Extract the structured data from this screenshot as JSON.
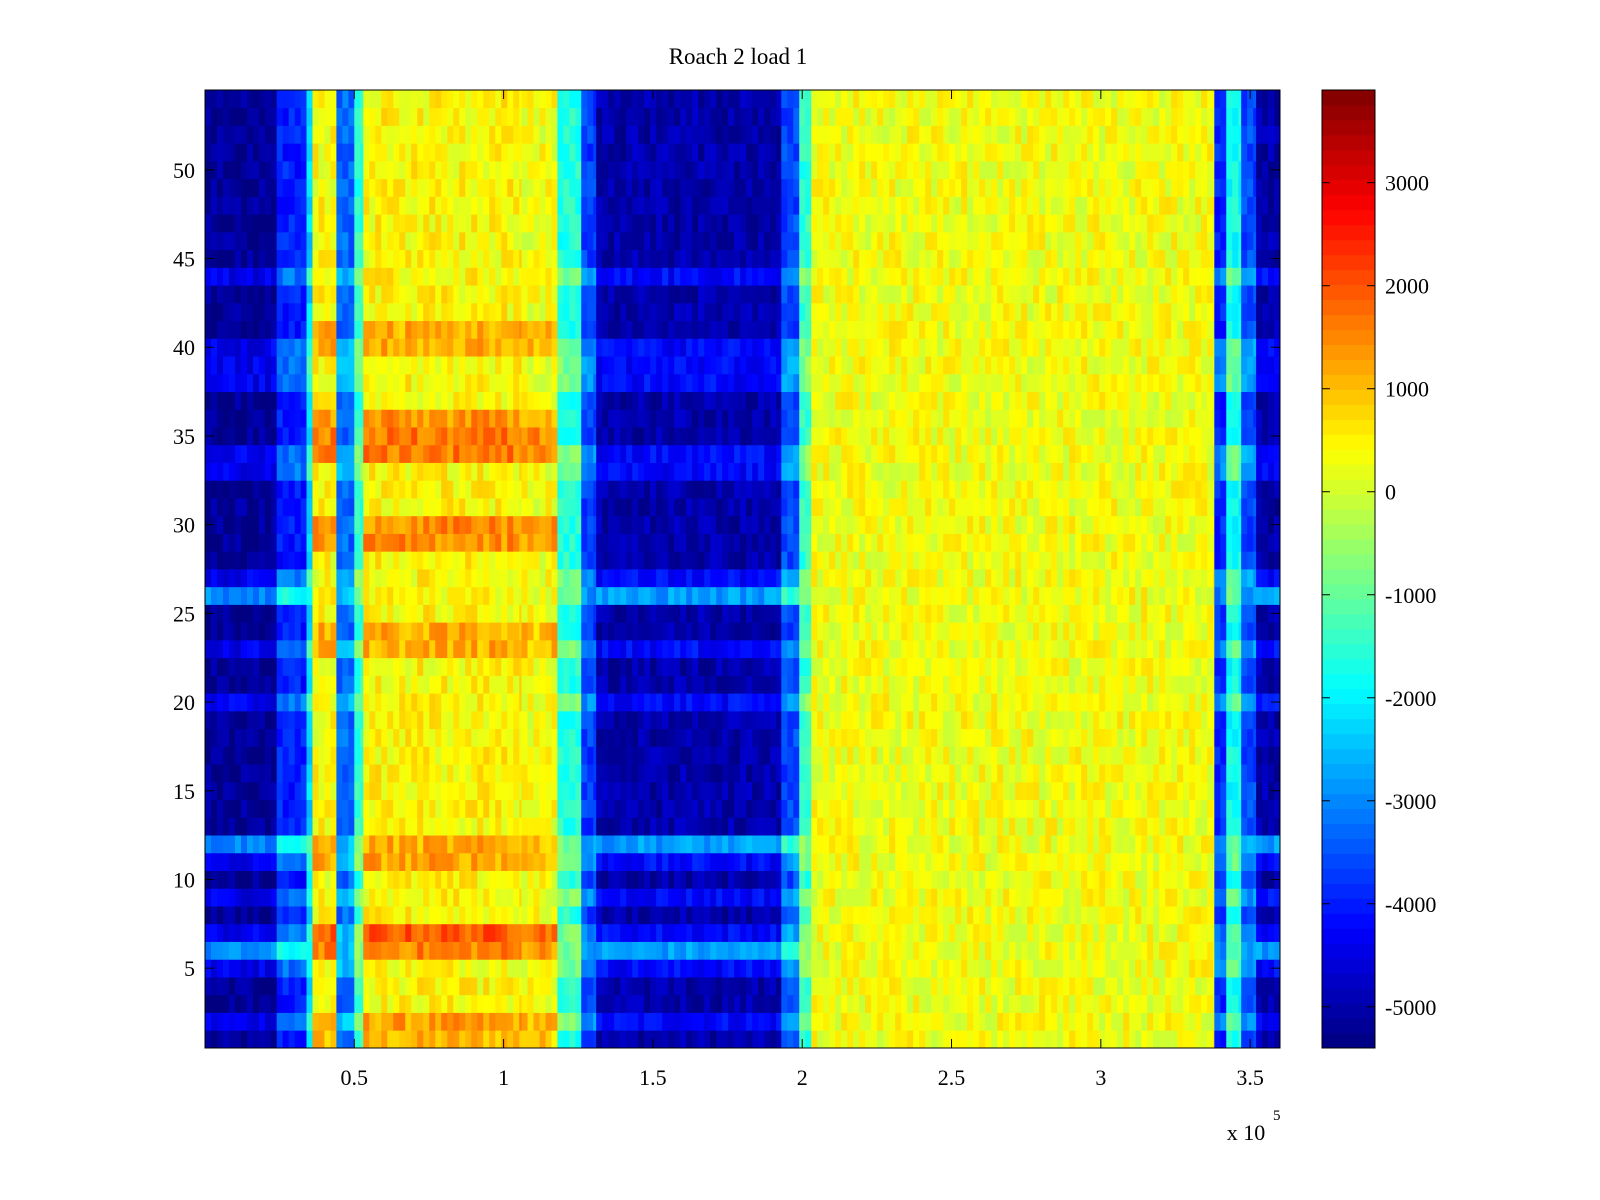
{
  "chart_data": {
    "type": "heatmap",
    "title": "Roach 2 load 1",
    "xlabel": "",
    "ylabel": "",
    "x_exponent_label": "x 10",
    "x_exponent_power": "5",
    "xlim": [
      0,
      360000
    ],
    "ylim": [
      0.5,
      54.5
    ],
    "x_ticks": [
      50000,
      100000,
      150000,
      200000,
      250000,
      300000,
      350000
    ],
    "x_tick_labels": [
      "0.5",
      "1",
      "1.5",
      "2",
      "2.5",
      "3",
      "3.5"
    ],
    "y_ticks": [
      5,
      10,
      15,
      20,
      25,
      30,
      35,
      40,
      45,
      50
    ],
    "y_tick_labels": [
      "5",
      "10",
      "15",
      "20",
      "25",
      "30",
      "35",
      "40",
      "45",
      "50"
    ],
    "rows": 54,
    "colormap": "jet",
    "clim": [
      -5400,
      3900
    ],
    "colorbar": {
      "ticks": [
        -5000,
        -4000,
        -3000,
        -2000,
        -1000,
        0,
        1000,
        2000,
        3000
      ],
      "tick_labels": [
        "-5000",
        "-4000",
        "-3000",
        "-2000",
        "-1000",
        "0",
        "1000",
        "2000",
        "3000"
      ]
    },
    "column_profile": [
      {
        "x_start": 0,
        "x_end": 24000,
        "value": -5200
      },
      {
        "x_start": 24000,
        "x_end": 34000,
        "value": -4000
      },
      {
        "x_start": 34000,
        "x_end": 36000,
        "value": -2300
      },
      {
        "x_start": 36000,
        "x_end": 44000,
        "value": 400
      },
      {
        "x_start": 44000,
        "x_end": 50000,
        "value": -3300
      },
      {
        "x_start": 50000,
        "x_end": 53000,
        "value": -1500
      },
      {
        "x_start": 53000,
        "x_end": 106000,
        "value": 450
      },
      {
        "x_start": 106000,
        "x_end": 118000,
        "value": 300
      },
      {
        "x_start": 118000,
        "x_end": 126000,
        "value": -1600
      },
      {
        "x_start": 126000,
        "x_end": 131000,
        "value": -3700
      },
      {
        "x_start": 131000,
        "x_end": 193000,
        "value": -5000
      },
      {
        "x_start": 193000,
        "x_end": 199000,
        "value": -3600
      },
      {
        "x_start": 199000,
        "x_end": 203000,
        "value": -1500
      },
      {
        "x_start": 203000,
        "x_end": 338000,
        "value": 300
      },
      {
        "x_start": 338000,
        "x_end": 342000,
        "value": -3900
      },
      {
        "x_start": 342000,
        "x_end": 347000,
        "value": -1800
      },
      {
        "x_start": 347000,
        "x_end": 352000,
        "value": -3600
      },
      {
        "x_start": 352000,
        "x_end": 360000,
        "value": -5000
      }
    ],
    "row_offsets": [
      {
        "row": 1,
        "value": 600
      },
      {
        "row": 2,
        "value": 800
      },
      {
        "row": 6,
        "value": 1100
      },
      {
        "row": 7,
        "value": 1500
      },
      {
        "row": 11,
        "value": 800
      },
      {
        "row": 12,
        "value": 700
      },
      {
        "row": 23,
        "value": 700
      },
      {
        "row": 24,
        "value": 700
      },
      {
        "row": 29,
        "value": 1000
      },
      {
        "row": 30,
        "value": 1000
      },
      {
        "row": 34,
        "value": 1200
      },
      {
        "row": 35,
        "value": 1200
      },
      {
        "row": 36,
        "value": 900
      },
      {
        "row": 40,
        "value": 700
      },
      {
        "row": 41,
        "value": 700
      }
    ],
    "blue_band_rows": [
      2,
      5,
      6,
      7,
      9,
      11,
      12,
      20,
      23,
      26,
      27,
      33,
      34,
      38,
      39,
      40,
      44
    ],
    "highlight_rows": [
      6,
      12,
      26
    ]
  }
}
